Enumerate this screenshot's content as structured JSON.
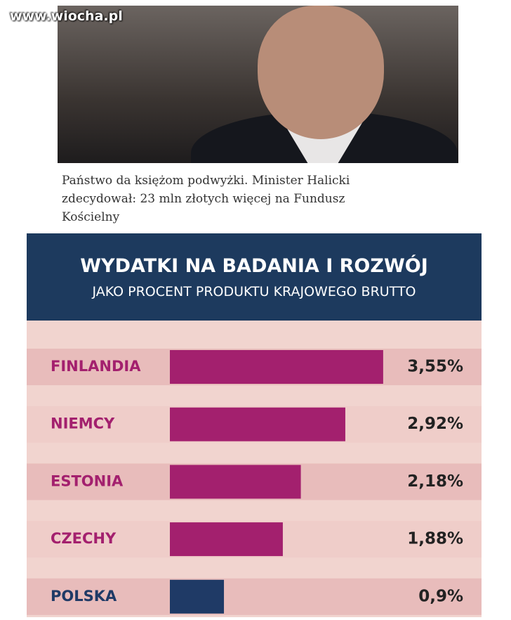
{
  "watermark": "www.wiocha.pl",
  "caption": "Państwo da księżom podwyżki. Minister Halicki zdecydował: 23 mln złotych więcej na Fundusz Kościelny",
  "chart_data": {
    "type": "bar",
    "orientation": "horizontal",
    "title": "WYDATKI NA BADANIA I ROZWÓJ",
    "subtitle": "JAKO PROCENT PRODUKTU KRAJOWEGO BRUTTO",
    "categories": [
      "FINLANDIA",
      "NIEMCY",
      "ESTONIA",
      "CZECHY",
      "POLSKA"
    ],
    "values": [
      3.55,
      2.92,
      2.18,
      1.88,
      0.9
    ],
    "value_labels": [
      "3,55%",
      "2,92%",
      "2,18%",
      "1,88%",
      "0,9%"
    ],
    "colors": [
      "#a3206e",
      "#a3206e",
      "#a3206e",
      "#a3206e",
      "#1f3a66"
    ]
  }
}
